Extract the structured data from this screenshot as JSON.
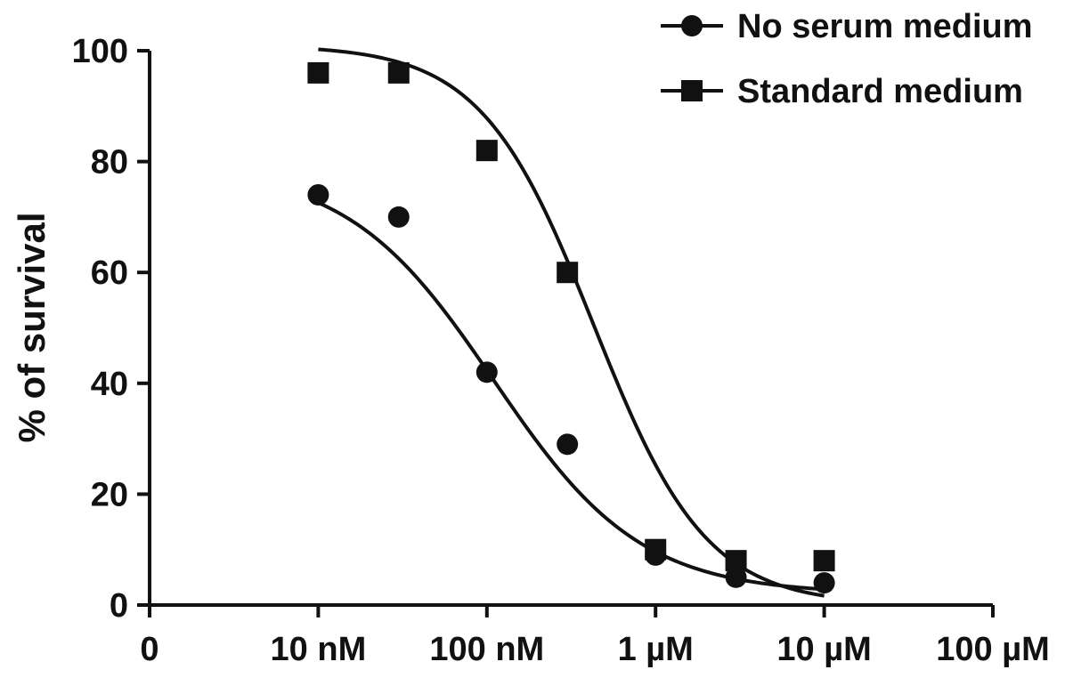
{
  "chart_data": {
    "type": "scatter",
    "title": "",
    "xlabel": "",
    "ylabel": "% of survival",
    "x_scale": "log",
    "x_unit": "M",
    "xlim": [
      1e-09,
      0.0001
    ],
    "ylim": [
      0,
      100
    ],
    "x_ticks": [
      {
        "value": 1e-09,
        "label": "0"
      },
      {
        "value": 1e-08,
        "label": "10 nM"
      },
      {
        "value": 1e-07,
        "label": "100 nM"
      },
      {
        "value": 1e-06,
        "label": "1 µM"
      },
      {
        "value": 1e-05,
        "label": "10 µM"
      },
      {
        "value": 0.0001,
        "label": "100 µM"
      }
    ],
    "y_ticks": [
      0,
      20,
      40,
      60,
      80,
      100
    ],
    "grid": false,
    "legend_position": "top-right",
    "series": [
      {
        "name": "No serum medium",
        "marker": "circle",
        "color": "#111111",
        "points": [
          {
            "x": 1e-08,
            "y": 74
          },
          {
            "x": 3e-08,
            "y": 70
          },
          {
            "x": 1e-07,
            "y": 42
          },
          {
            "x": 3e-07,
            "y": 29
          },
          {
            "x": 1e-06,
            "y": 9
          },
          {
            "x": 3e-06,
            "y": 5
          },
          {
            "x": 1e-05,
            "y": 4
          }
        ],
        "fit": {
          "top": 79,
          "bottom": 2,
          "ec50": 1.1e-07,
          "hill": 1.0
        }
      },
      {
        "name": "Standard medium",
        "marker": "square",
        "color": "#111111",
        "points": [
          {
            "x": 1e-08,
            "y": 96
          },
          {
            "x": 3e-08,
            "y": 96
          },
          {
            "x": 1e-07,
            "y": 82
          },
          {
            "x": 3e-07,
            "y": 60
          },
          {
            "x": 1e-06,
            "y": 10
          },
          {
            "x": 3e-06,
            "y": 8
          },
          {
            "x": 1e-05,
            "y": 8
          }
        ],
        "fit": {
          "top": 101,
          "bottom": 0,
          "ec50": 4.3e-07,
          "hill": 1.3
        }
      }
    ]
  }
}
